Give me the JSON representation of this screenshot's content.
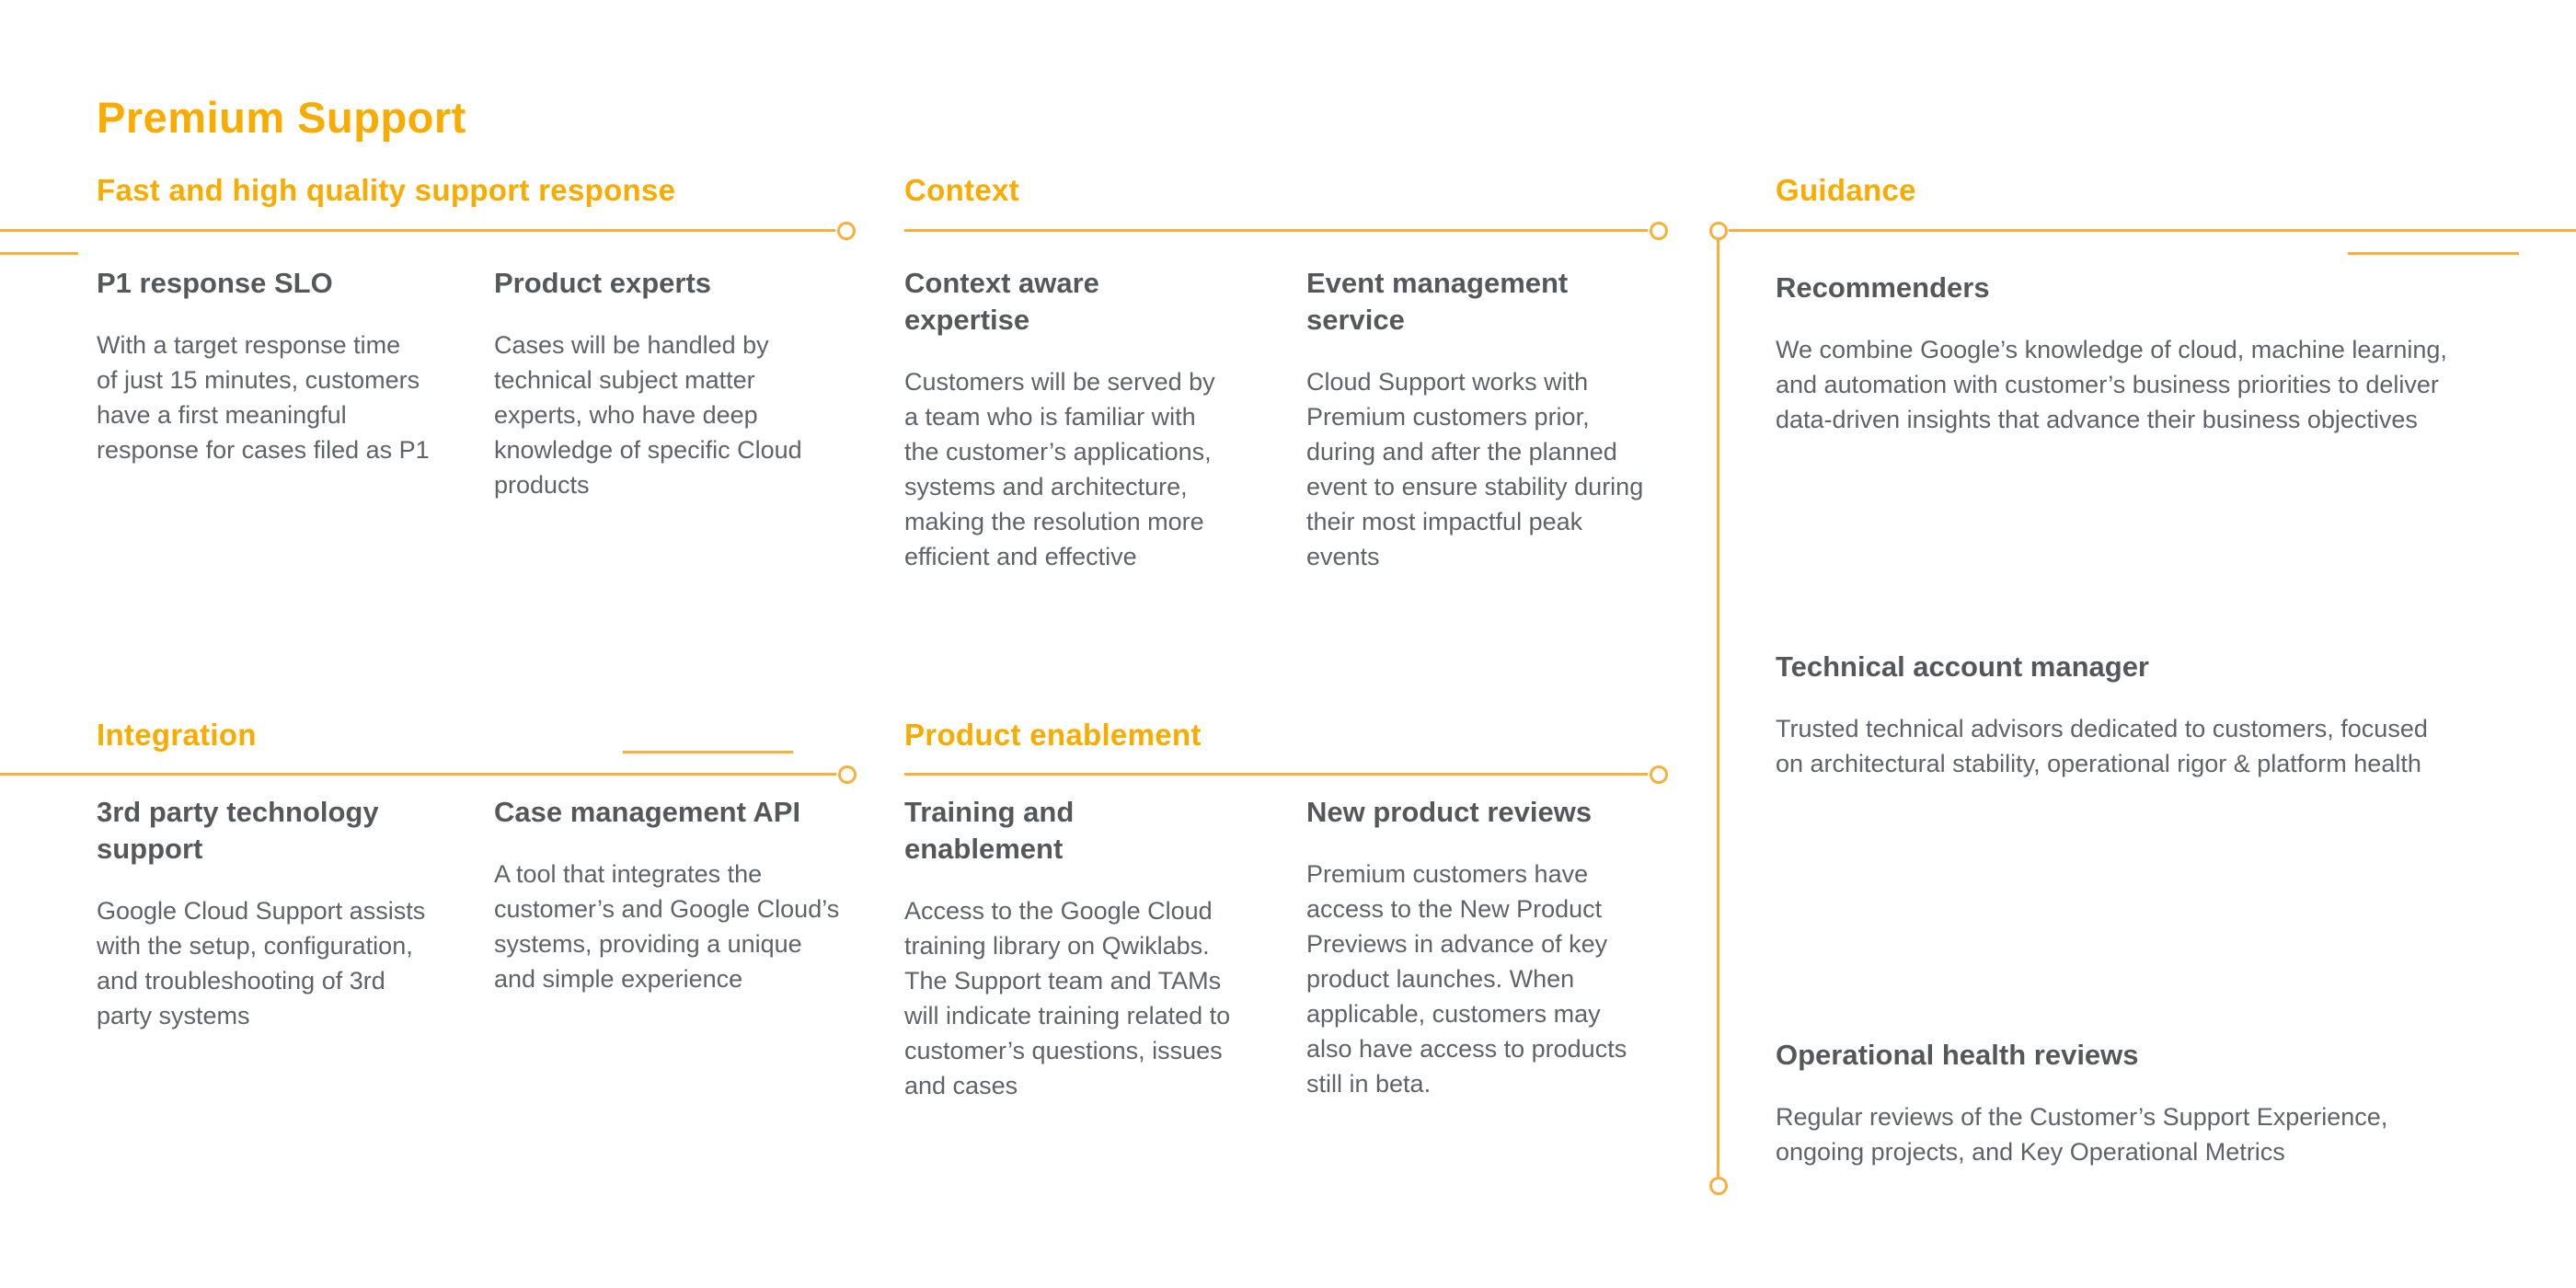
{
  "page": {
    "title": "Premium Support"
  },
  "colors": {
    "accent": "#F9AB00",
    "line": "#F8AF3B",
    "heading_text": "#55585B",
    "body_text": "#5F6368",
    "background": "#FFFFFF"
  },
  "sections": [
    {
      "label": "Fast and high quality support response",
      "cards": [
        {
          "heading": "P1 response SLO",
          "body": "With a target response time\nof just 15 minutes, customers\nhave a first meaningful\nresponse for cases filed as P1"
        },
        {
          "heading": "Product experts",
          "body": "Cases will be handled by\ntechnical subject matter\nexperts, who have deep\nknowledge of specific Cloud\nproducts"
        }
      ]
    },
    {
      "label": "Context",
      "cards": [
        {
          "heading": "Context aware\nexpertise",
          "body": "Customers will be served by\na team who is familiar with\nthe customer’s applications,\nsystems and architecture,\nmaking the resolution more\nefficient and effective"
        },
        {
          "heading": "Event management\nservice",
          "body": "Cloud Support works with\nPremium customers prior,\nduring and after the planned\nevent to ensure stability during\ntheir most impactful peak\nevents"
        }
      ]
    },
    {
      "label": "Guidance",
      "cards": [
        {
          "heading": "Recommenders",
          "body": "We combine Google’s knowledge of cloud, machine learning,\nand automation with customer’s business priorities to deliver\ndata-driven insights that advance their business objectives"
        },
        {
          "heading": "Technical account manager",
          "body": "Trusted technical advisors dedicated to customers, focused\non architectural stability, operational rigor & platform health"
        },
        {
          "heading": "Operational health reviews",
          "body": "Regular reviews of the Customer’s Support Experience,\nongoing projects, and Key Operational Metrics"
        }
      ]
    },
    {
      "label": "Integration",
      "cards": [
        {
          "heading": "3rd party technology\nsupport",
          "body": "Google Cloud Support assists\nwith the setup, configuration,\nand troubleshooting of 3rd\nparty systems"
        },
        {
          "heading": "Case management API",
          "body": "A tool that integrates the\ncustomer’s and Google Cloud’s\nsystems, providing a unique\nand simple experience"
        }
      ]
    },
    {
      "label": "Product enablement",
      "cards": [
        {
          "heading": "Training and\nenablement",
          "body": "Access to the Google Cloud\ntraining library on Qwiklabs.\nThe Support team and TAMs\nwill indicate training related to\ncustomer’s questions, issues\nand cases"
        },
        {
          "heading": "New product reviews",
          "body": "Premium customers have\naccess to the New Product\nPreviews in advance of key\nproduct launches. When\napplicable, customers may\nalso have access to products\nstill in beta."
        }
      ]
    }
  ]
}
